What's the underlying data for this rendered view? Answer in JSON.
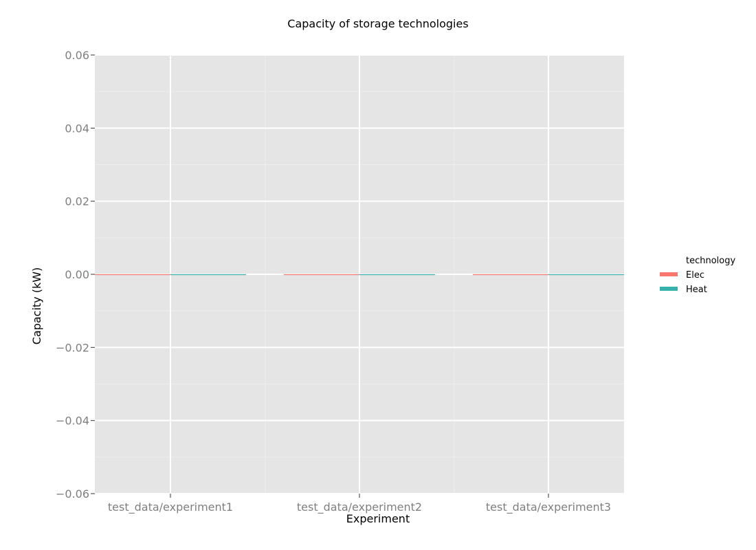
{
  "chart_data": {
    "type": "bar",
    "title": "Capacity of storage technologies",
    "xlabel": "Experiment",
    "ylabel": "Capacity (kW)",
    "categories": [
      "test_data/experiment1",
      "test_data/experiment2",
      "test_data/experiment3"
    ],
    "series": [
      {
        "name": "Elec",
        "values": [
          0,
          0,
          0
        ],
        "color": "#f8766d"
      },
      {
        "name": "Heat",
        "values": [
          0,
          0,
          0
        ],
        "color": "#36b1ad"
      }
    ],
    "ylim": [
      -0.06,
      0.06
    ],
    "yticks": [
      0.06,
      0.04,
      0.02,
      0.0,
      -0.02,
      -0.04,
      -0.06
    ],
    "ytick_labels": [
      "0.06",
      "0.04",
      "0.02",
      "0.00",
      "−0.02",
      "−0.04",
      "−0.06"
    ],
    "legend": {
      "title": "technology",
      "position": "right"
    },
    "grid": true,
    "background_color": "#e5e5e5",
    "bar_layout": "dodge"
  }
}
